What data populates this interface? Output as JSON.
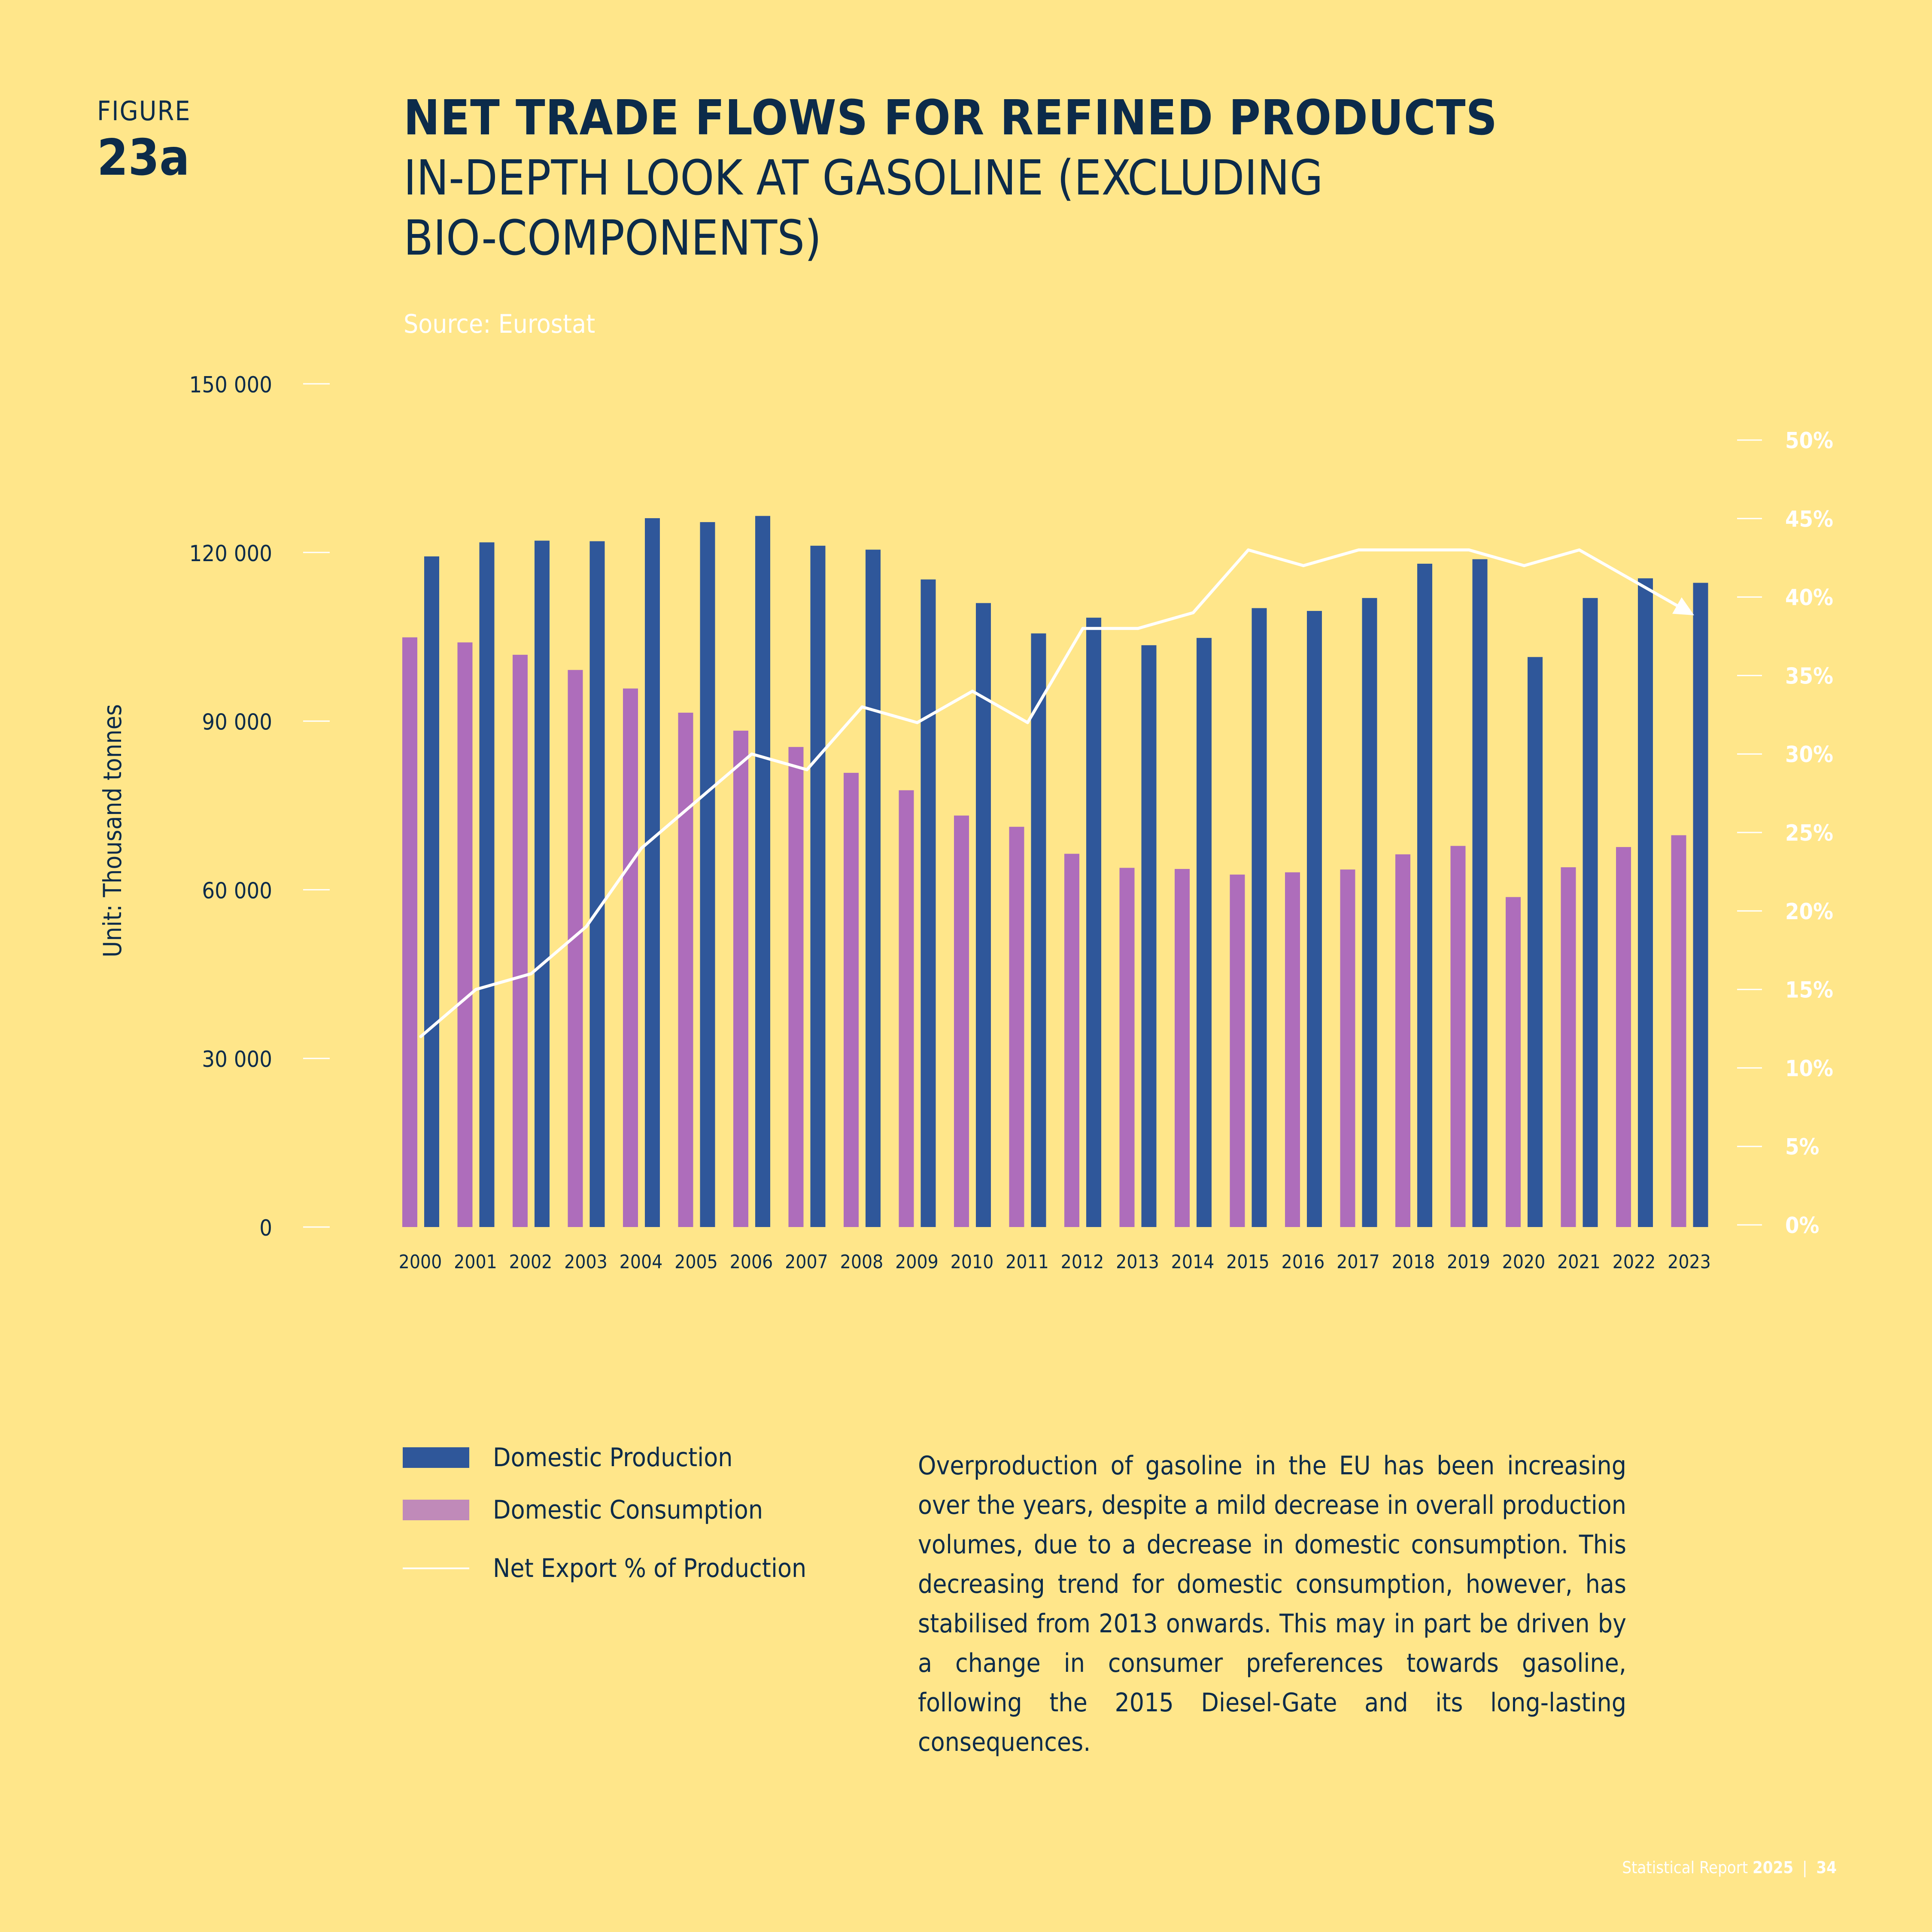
{
  "figure": {
    "label": "FIGURE",
    "number": "23a"
  },
  "title": "NET TRADE FLOWS FOR REFINED PRODUCTS",
  "subtitle_line1": "IN-DEPTH LOOK AT GASOLINE (EXCLUDING",
  "subtitle_line2": "BIO-COMPONENTS)",
  "source": "Source: Eurostat",
  "colors": {
    "background": "#FFE68A",
    "production": "#2F579A",
    "consumption": "#AE6DBB",
    "consumption_legend": "#C08AB9",
    "net_export_line": "#FFFFFF",
    "text": "#0C2B4A"
  },
  "chart_data": {
    "type": "bar",
    "ylabel": "Unit: Thousand tonnes",
    "ylim": [
      0,
      150000
    ],
    "y_ticks": [
      "0",
      "30 000",
      "60 000",
      "90 000",
      "120 000",
      "150 000"
    ],
    "y2lim": [
      0,
      50
    ],
    "y2_ticks": [
      "0%",
      "5%",
      "10%",
      "15%",
      "20%",
      "25%",
      "30%",
      "35%",
      "40%",
      "45%",
      "50%"
    ],
    "categories": [
      "2000",
      "2001",
      "2002",
      "2003",
      "2004",
      "2005",
      "2006",
      "2007",
      "2008",
      "2009",
      "2010",
      "2011",
      "2012",
      "2013",
      "2014",
      "2015",
      "2016",
      "2017",
      "2018",
      "2019",
      "2020",
      "2021",
      "2022",
      "2023"
    ],
    "series": [
      {
        "name": "Domestic Consumption",
        "kind": "bar",
        "values": [
          104900,
          104000,
          101800,
          99100,
          95800,
          91500,
          88300,
          85400,
          80800,
          77700,
          73200,
          71200,
          66400,
          63900,
          63700,
          62700,
          63100,
          63600,
          66300,
          67800,
          58700,
          64000,
          67600,
          69700
        ]
      },
      {
        "name": "Domestic Production",
        "kind": "bar",
        "values": [
          119300,
          121800,
          122100,
          122000,
          126100,
          125400,
          126500,
          121200,
          120500,
          115200,
          111000,
          105600,
          108400,
          103500,
          104800,
          110100,
          109600,
          111900,
          118000,
          118800,
          101400,
          111900,
          115400,
          114600
        ]
      },
      {
        "name": "Net Export % of Production",
        "kind": "line",
        "axis": "right",
        "values": [
          12,
          15,
          16,
          19,
          24,
          27,
          30,
          29,
          33,
          32,
          34,
          32,
          38,
          38,
          39,
          43,
          42,
          43,
          43,
          43,
          42,
          43,
          41,
          39
        ]
      }
    ]
  },
  "legend": {
    "production": "Domestic Production",
    "consumption": "Domestic Consumption",
    "net_export": "Net Export % of Production"
  },
  "description": "Overproduction of gasoline in the EU has been increasing over the years, despite a mild decrease in overall production volumes, due to a decrease in domestic consumption. This decreasing trend for domestic consumption, however, has stabilised from 2013 onwards. This may in part be driven by a change in consumer preferences towards gasoline, following the 2015 Diesel-Gate and its long-lasting consequences.",
  "footer": {
    "report": "Statistical Report",
    "year": "2025",
    "separator": "|",
    "page": "34"
  }
}
